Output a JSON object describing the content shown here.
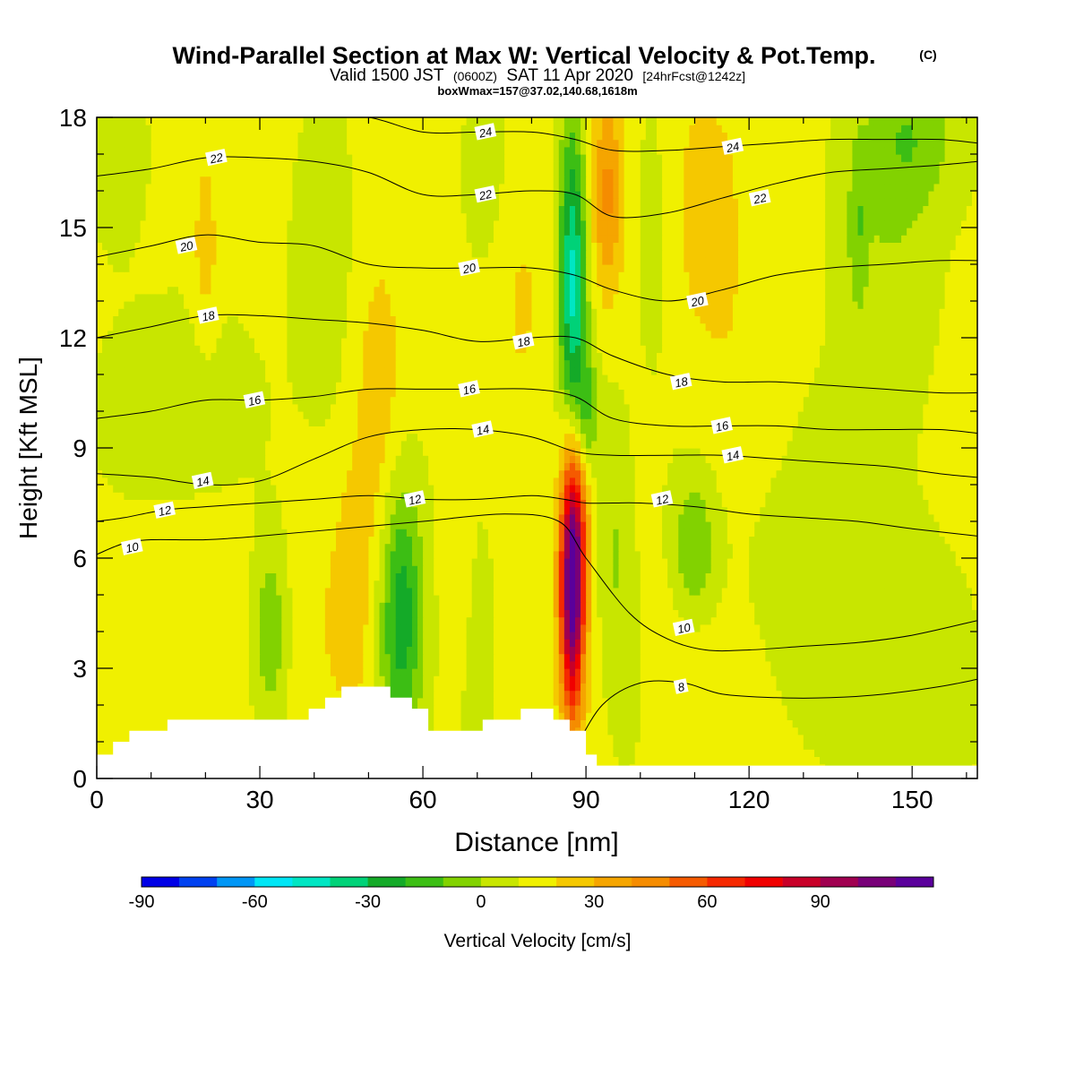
{
  "header": {
    "title": "Wind-Parallel Section at Max W: Vertical Velocity & Pot.Temp.",
    "copyright": "(C)",
    "valid_prefix": "Valid 1500 JST",
    "valid_utc": "(0600Z)",
    "valid_date": "SAT 11 Apr 2020",
    "forecast": "[24hrFcst@1242z]",
    "box_wmax": "boxWmax=157@37.02,140.68,1618m"
  },
  "chart_data": {
    "type": "heatmap",
    "title": "Wind-Parallel Section at Max W: Vertical Velocity & Pot.Temp.",
    "xlabel": "Distance [nm]",
    "ylabel": "Height [Kft MSL]",
    "xlim": [
      0,
      162
    ],
    "ylim": [
      0,
      18
    ],
    "x_ticks": [
      0,
      30,
      60,
      90,
      120,
      150
    ],
    "y_ticks": [
      0,
      3,
      6,
      9,
      12,
      15,
      18
    ],
    "colorbar": {
      "label": "Vertical Velocity [cm/s]",
      "ticks": [
        -90,
        -60,
        -30,
        0,
        30,
        60,
        90
      ],
      "bounds": [
        -100,
        110
      ],
      "step": 10,
      "colors": [
        "#0000e6",
        "#0041f0",
        "#0096f5",
        "#00e6f5",
        "#00e6c3",
        "#00d278",
        "#14aa28",
        "#3cbe14",
        "#82d200",
        "#c8e600",
        "#f0f000",
        "#f5c800",
        "#f5a500",
        "#f58c00",
        "#f55a00",
        "#f52800",
        "#f00000",
        "#c80028",
        "#a00050",
        "#780078",
        "#5a009b"
      ]
    },
    "shading": {
      "background_value": 2,
      "features": [
        {
          "x": 87.5,
          "y": 5.2,
          "sx": 1.6,
          "sy": 2.4,
          "value": 110
        },
        {
          "x": 89.0,
          "y": 8.0,
          "sx": 2.0,
          "sy": 1.6,
          "value": 25
        },
        {
          "x": 87.5,
          "y": 13.5,
          "sx": 1.8,
          "sy": 3.0,
          "value": -55
        },
        {
          "x": 90.0,
          "y": 9.5,
          "sx": 1.6,
          "sy": 1.5,
          "value": -30
        },
        {
          "x": 56.0,
          "y": 4.5,
          "sx": 2.8,
          "sy": 2.6,
          "value": -40
        },
        {
          "x": 52.0,
          "y": 10.0,
          "sx": 3.5,
          "sy": 3.5,
          "value": 14
        },
        {
          "x": 47.0,
          "y": 5.0,
          "sx": 2.5,
          "sy": 2.5,
          "value": 12
        },
        {
          "x": 40.0,
          "y": 4.0,
          "sx": 5.0,
          "sy": 2.5,
          "value": 7
        },
        {
          "x": 32.0,
          "y": 4.0,
          "sx": 2.5,
          "sy": 1.8,
          "value": -22
        },
        {
          "x": 18.0,
          "y": 4.0,
          "sx": 8.0,
          "sy": 2.2,
          "value": 8
        },
        {
          "x": 20.0,
          "y": 14.5,
          "sx": 1.6,
          "sy": 1.8,
          "value": 14
        },
        {
          "x": 42.0,
          "y": 14.0,
          "sx": 4.0,
          "sy": 3.0,
          "value": -8
        },
        {
          "x": 15.0,
          "y": 10.0,
          "sx": 10.0,
          "sy": 2.0,
          "value": -8
        },
        {
          "x": 4.0,
          "y": 17.0,
          "sx": 3.0,
          "sy": 1.5,
          "value": -12
        },
        {
          "x": 72.0,
          "y": 16.5,
          "sx": 3.0,
          "sy": 2.0,
          "value": -8
        },
        {
          "x": 78.0,
          "y": 13.0,
          "sx": 4.0,
          "sy": 3.0,
          "value": 9
        },
        {
          "x": 94.0,
          "y": 16.0,
          "sx": 2.2,
          "sy": 2.0,
          "value": 30
        },
        {
          "x": 112.0,
          "y": 15.5,
          "sx": 5.0,
          "sy": 2.5,
          "value": 14
        },
        {
          "x": 103.0,
          "y": 15.0,
          "sx": 3.0,
          "sy": 3.0,
          "value": -6
        },
        {
          "x": 120.0,
          "y": 10.0,
          "sx": 6.0,
          "sy": 2.5,
          "value": 8
        },
        {
          "x": 110.0,
          "y": 6.2,
          "sx": 3.0,
          "sy": 1.5,
          "value": -22
        },
        {
          "x": 130.0,
          "y": 6.0,
          "sx": 10.0,
          "sy": 3.0,
          "value": -10
        },
        {
          "x": 145.0,
          "y": 14.5,
          "sx": 6.0,
          "sy": 3.0,
          "value": -10
        },
        {
          "x": 150.0,
          "y": 17.5,
          "sx": 6.0,
          "sy": 1.5,
          "value": -18
        },
        {
          "x": 140.0,
          "y": 15.0,
          "sx": 1.2,
          "sy": 1.5,
          "value": -15
        },
        {
          "x": 150.0,
          "y": 2.5,
          "sx": 8.0,
          "sy": 2.5,
          "value": -8
        },
        {
          "x": 110.0,
          "y": 2.8,
          "sx": 10.0,
          "sy": 2.2,
          "value": 8
        },
        {
          "x": 98.0,
          "y": 3.0,
          "sx": 2.5,
          "sy": 2.0,
          "value": -10
        },
        {
          "x": 70.0,
          "y": 3.5,
          "sx": 1.8,
          "sy": 2.5,
          "value": -10
        },
        {
          "x": 67.0,
          "y": 6.0,
          "sx": 2.0,
          "sy": 2.0,
          "value": 8
        },
        {
          "x": 95.0,
          "y": 6.5,
          "sx": 2.0,
          "sy": 2.5,
          "value": -12
        }
      ]
    },
    "terrain": {
      "x": [
        0,
        3,
        3,
        6,
        6,
        13,
        13,
        39,
        39,
        42,
        42,
        45,
        45,
        54,
        54,
        58,
        58,
        61,
        61,
        71,
        71,
        78,
        78,
        84,
        84,
        87,
        87,
        90,
        90,
        92,
        92,
        162
      ],
      "y": [
        0.65,
        0.65,
        1.0,
        1.0,
        1.3,
        1.3,
        1.6,
        1.6,
        1.9,
        1.9,
        2.2,
        2.2,
        2.5,
        2.5,
        2.2,
        2.2,
        1.9,
        1.9,
        1.3,
        1.3,
        1.6,
        1.6,
        1.9,
        1.9,
        1.6,
        1.6,
        1.3,
        1.3,
        0.65,
        0.65,
        0.35,
        0.35
      ]
    },
    "isentropes": [
      {
        "label": "8",
        "x": [
          88,
          93,
          100,
          108,
          115,
          125,
          135,
          145,
          155,
          162
        ],
        "y": [
          0.8,
          2.0,
          2.6,
          2.6,
          2.3,
          2.2,
          2.2,
          2.3,
          2.5,
          2.7
        ]
      },
      {
        "label": "10",
        "x": [
          0,
          5,
          10,
          20,
          30,
          45,
          60,
          75,
          85,
          90,
          98,
          105,
          112,
          120,
          130,
          140,
          150,
          162
        ],
        "y": [
          6.1,
          6.4,
          6.5,
          6.5,
          6.6,
          6.8,
          7.0,
          7.2,
          7.0,
          6.0,
          4.5,
          3.8,
          3.5,
          3.5,
          3.6,
          3.7,
          3.9,
          4.3
        ]
      },
      {
        "label": "12",
        "x": [
          0,
          5,
          12,
          20,
          30,
          40,
          50,
          60,
          70,
          80,
          86,
          90,
          95,
          100,
          110,
          120,
          130,
          140,
          150,
          162
        ],
        "y": [
          7.0,
          7.1,
          7.3,
          7.4,
          7.5,
          7.6,
          7.7,
          7.6,
          7.6,
          7.7,
          7.6,
          7.5,
          7.5,
          7.5,
          7.4,
          7.2,
          7.1,
          7.0,
          6.8,
          6.6
        ]
      },
      {
        "label": "14",
        "x": [
          0,
          10,
          20,
          30,
          40,
          50,
          60,
          70,
          80,
          88,
          95,
          105,
          115,
          125,
          135,
          145,
          155,
          162
        ],
        "y": [
          8.3,
          8.2,
          8.0,
          8.1,
          8.7,
          9.3,
          9.5,
          9.5,
          9.3,
          8.9,
          8.8,
          8.8,
          8.8,
          8.7,
          8.6,
          8.5,
          8.3,
          8.2
        ]
      },
      {
        "label": "16",
        "x": [
          0,
          10,
          20,
          30,
          40,
          50,
          60,
          70,
          80,
          88,
          95,
          105,
          115,
          125,
          135,
          145,
          155,
          162
        ],
        "y": [
          9.8,
          10.0,
          10.3,
          10.3,
          10.4,
          10.6,
          10.6,
          10.6,
          10.6,
          10.4,
          9.8,
          9.6,
          9.6,
          9.6,
          9.5,
          9.5,
          9.5,
          9.4
        ]
      },
      {
        "label": "18",
        "x": [
          0,
          10,
          20,
          30,
          40,
          50,
          60,
          70,
          80,
          88,
          95,
          105,
          115,
          125,
          135,
          145,
          155,
          162
        ],
        "y": [
          12.0,
          12.3,
          12.6,
          12.6,
          12.5,
          12.4,
          12.2,
          11.9,
          12.0,
          12.0,
          11.5,
          11.0,
          10.8,
          10.8,
          10.7,
          10.6,
          10.5,
          10.5
        ]
      },
      {
        "label": "20",
        "x": [
          0,
          10,
          20,
          30,
          40,
          50,
          60,
          70,
          80,
          88,
          95,
          105,
          115,
          125,
          135,
          145,
          155,
          162
        ],
        "y": [
          14.2,
          14.5,
          14.8,
          14.6,
          14.5,
          14.0,
          13.9,
          13.9,
          13.9,
          13.7,
          13.3,
          13.0,
          13.3,
          13.7,
          13.9,
          14.0,
          14.1,
          14.1
        ]
      },
      {
        "label": "22",
        "x": [
          0,
          10,
          20,
          30,
          40,
          50,
          60,
          70,
          80,
          88,
          95,
          105,
          115,
          125,
          135,
          145,
          155,
          162
        ],
        "y": [
          16.4,
          16.6,
          16.9,
          16.9,
          16.8,
          16.5,
          15.9,
          15.9,
          16.0,
          15.9,
          15.3,
          15.4,
          15.8,
          16.2,
          16.5,
          16.6,
          16.7,
          16.8
        ]
      },
      {
        "label": "24",
        "x": [
          0,
          10,
          20,
          30,
          40,
          50,
          60,
          70,
          80,
          88,
          95,
          105,
          115,
          125,
          135,
          145,
          155,
          162
        ],
        "y": [
          18.0,
          18.0,
          18.0,
          18.0,
          18.0,
          18.0,
          17.6,
          17.6,
          17.6,
          17.4,
          17.1,
          17.1,
          17.2,
          17.3,
          17.4,
          17.4,
          17.4,
          17.3
        ]
      }
    ],
    "isentrope_labels": [
      {
        "text": "8",
        "x": 107.5,
        "y": 2.5
      },
      {
        "text": "10",
        "x": 108.0,
        "y": 4.1
      },
      {
        "text": "10",
        "x": 6.5,
        "y": 6.3
      },
      {
        "text": "12",
        "x": 12.5,
        "y": 7.3
      },
      {
        "text": "12",
        "x": 58.5,
        "y": 7.6
      },
      {
        "text": "12",
        "x": 104.0,
        "y": 7.6
      },
      {
        "text": "14",
        "x": 19.5,
        "y": 8.1
      },
      {
        "text": "14",
        "x": 71.0,
        "y": 9.5
      },
      {
        "text": "14",
        "x": 117.0,
        "y": 8.8
      },
      {
        "text": "16",
        "x": 29.0,
        "y": 10.3
      },
      {
        "text": "16",
        "x": 68.5,
        "y": 10.6
      },
      {
        "text": "16",
        "x": 115.0,
        "y": 9.6
      },
      {
        "text": "18",
        "x": 20.5,
        "y": 12.6
      },
      {
        "text": "18",
        "x": 78.5,
        "y": 11.9
      },
      {
        "text": "18",
        "x": 107.5,
        "y": 10.8
      },
      {
        "text": "20",
        "x": 16.5,
        "y": 14.5
      },
      {
        "text": "20",
        "x": 68.5,
        "y": 13.9
      },
      {
        "text": "20",
        "x": 110.5,
        "y": 13.0
      },
      {
        "text": "22",
        "x": 22.0,
        "y": 16.9
      },
      {
        "text": "22",
        "x": 71.5,
        "y": 15.9
      },
      {
        "text": "22",
        "x": 122.0,
        "y": 15.8
      },
      {
        "text": "24",
        "x": 71.5,
        "y": 17.6
      },
      {
        "text": "24",
        "x": 117.0,
        "y": 17.2
      }
    ]
  }
}
